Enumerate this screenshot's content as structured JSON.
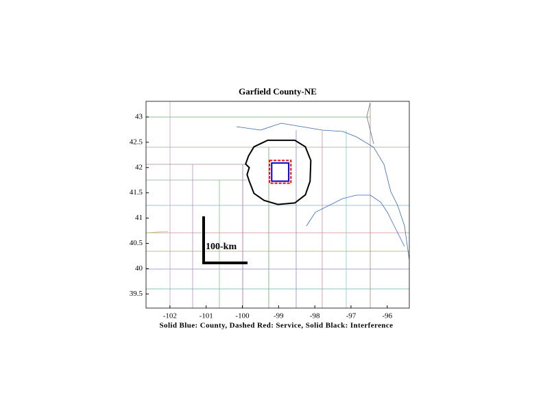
{
  "chart_data": {
    "type": "map",
    "title": "Garfield County-NE",
    "xlabel": "Solid Blue: County, Dashed Red: Service, Solid Black: Interference",
    "xlim": [
      -102.66,
      -95.39
    ],
    "ylim": [
      39.22,
      43.31
    ],
    "xticks": [
      -102,
      -101,
      -100,
      -99,
      -98,
      -97,
      -96
    ],
    "yticks": [
      43,
      42.5,
      42,
      41.5,
      41,
      40.5,
      40,
      39.5
    ],
    "scale_label": "100-km",
    "shapes": [
      {
        "color": "#0000cc",
        "style": "solid",
        "lon": [
          -99.19,
          -98.72,
          -98.72,
          -99.19
        ],
        "lat": [
          42.09,
          42.09,
          41.73,
          41.73
        ]
      },
      {
        "color": "#ff0000",
        "style": "dashed",
        "lon": [
          -99.25,
          -98.66,
          -98.66,
          -99.25
        ],
        "lat": [
          42.14,
          42.14,
          41.69,
          41.69
        ]
      },
      {
        "color": "#000000",
        "style": "solid",
        "lon": [
          -99.3,
          -98.55,
          -98.26,
          -98.11,
          -98.13,
          -98.26,
          -98.55,
          -99.02,
          -99.4,
          -99.68,
          -99.81,
          -99.87,
          -99.81,
          -99.91,
          -99.83,
          -99.68
        ],
        "lat": [
          42.54,
          42.54,
          42.41,
          42.14,
          41.73,
          41.46,
          41.3,
          41.27,
          41.35,
          41.49,
          41.73,
          41.86,
          42.0,
          42.07,
          42.23,
          42.41
        ]
      }
    ]
  }
}
